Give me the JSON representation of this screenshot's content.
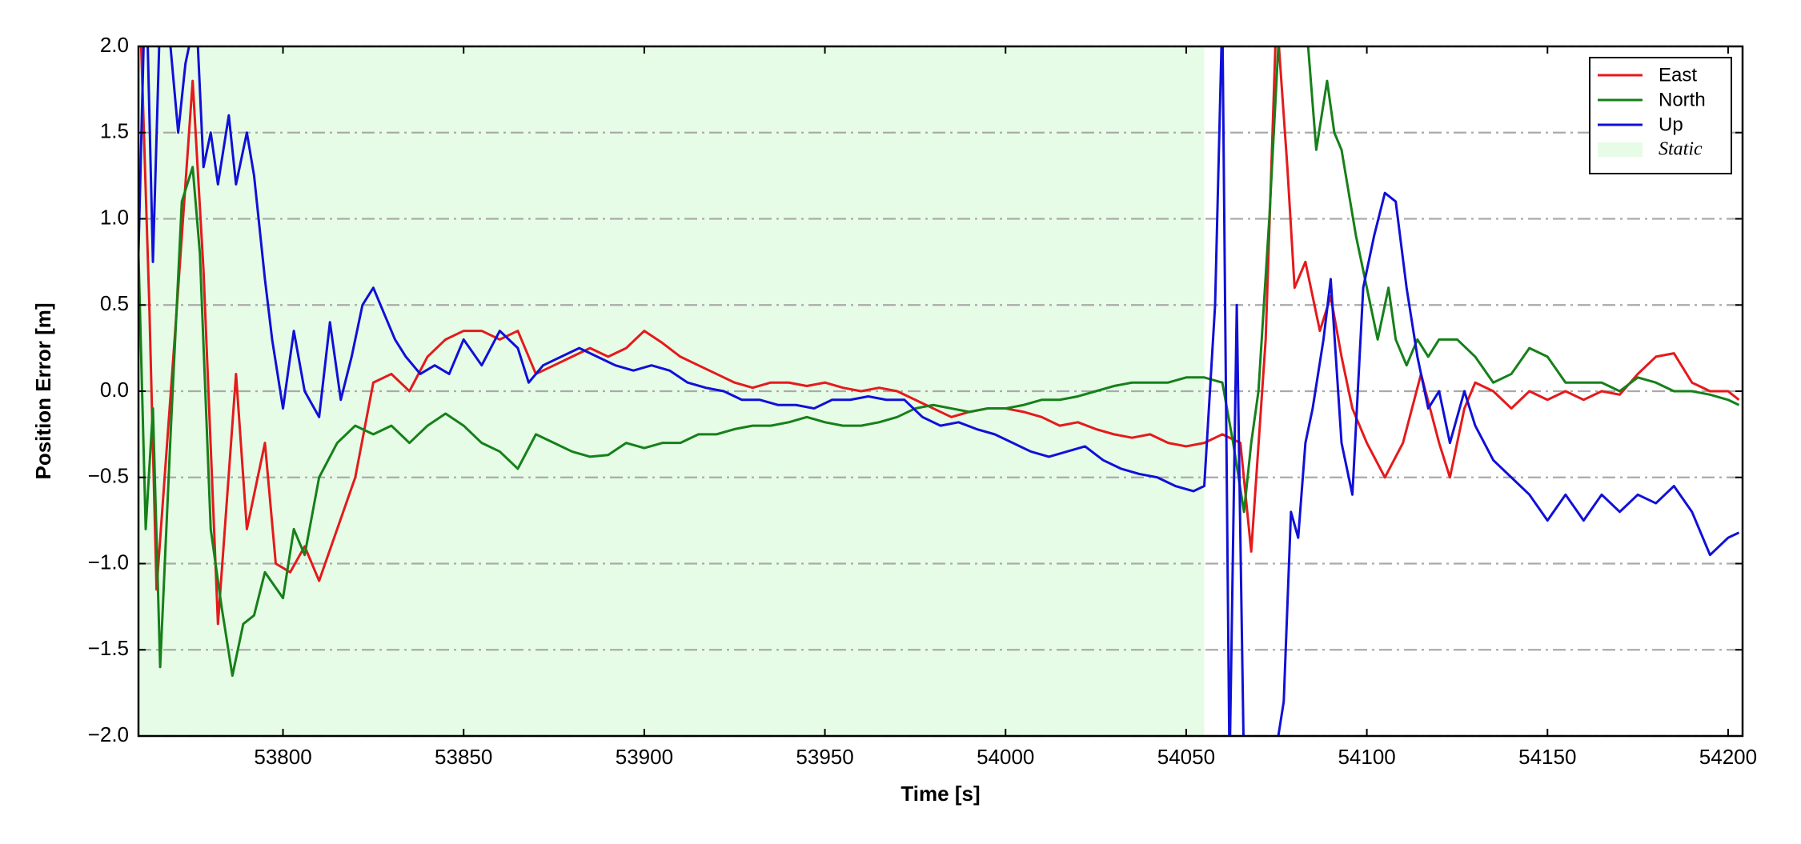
{
  "chart_data": {
    "type": "line",
    "xlabel": "Time [s]",
    "ylabel": "Position Error [m]",
    "xlim": [
      53760,
      54204
    ],
    "ylim": [
      -2,
      2
    ],
    "xticks": [
      53800,
      53850,
      53900,
      53950,
      54000,
      54050,
      54100,
      54150,
      54200
    ],
    "yticks": [
      {
        "value": -2,
        "label": "−2.0"
      },
      {
        "value": -1.5,
        "label": "−1.5"
      },
      {
        "value": -1,
        "label": "−1.0"
      },
      {
        "value": -0.5,
        "label": "−0.5"
      },
      {
        "value": 0,
        "label": "0.0"
      },
      {
        "value": 0.5,
        "label": "0.5"
      },
      {
        "value": 1,
        "label": "1.0"
      },
      {
        "value": 1.5,
        "label": "1.5"
      },
      {
        "value": 2,
        "label": "2.0"
      }
    ],
    "grid": "y",
    "legend": "upper right",
    "static": {
      "name": "Static",
      "start": 53760,
      "end": 54055,
      "color": "#e6fce6"
    },
    "series": [
      {
        "name": "East",
        "color": "#e41a1c",
        "x": [
          53760,
          53763,
          53765,
          53770,
          53775,
          53778,
          53782,
          53787,
          53790,
          53795,
          53798,
          53802,
          53806,
          53810,
          53815,
          53820,
          53825,
          53830,
          53835,
          53840,
          53845,
          53850,
          53855,
          53860,
          53865,
          53870,
          53875,
          53880,
          53885,
          53890,
          53895,
          53900,
          53905,
          53910,
          53915,
          53920,
          53925,
          53930,
          53935,
          53940,
          53945,
          53950,
          53955,
          53960,
          53965,
          53970,
          53975,
          53980,
          53985,
          53990,
          53995,
          54000,
          54005,
          54010,
          54015,
          54020,
          54025,
          54030,
          54035,
          54040,
          54045,
          54050,
          54055,
          54060,
          54065,
          54068,
          54072,
          54075,
          54078,
          54080,
          54083,
          54087,
          54090,
          54093,
          54096,
          54100,
          54105,
          54110,
          54115,
          54120,
          54123,
          54127,
          54130,
          54135,
          54140,
          54145,
          54150,
          54155,
          54160,
          54165,
          54170,
          54175,
          54180,
          54185,
          54190,
          54195,
          54200,
          54203
        ],
        "values": [
          2.5,
          0.5,
          -1.15,
          0.3,
          1.8,
          0.7,
          -1.35,
          0.1,
          -0.8,
          -0.3,
          -1.0,
          -1.05,
          -0.9,
          -1.1,
          -0.8,
          -0.5,
          0.05,
          0.1,
          0.0,
          0.2,
          0.3,
          0.35,
          0.35,
          0.3,
          0.35,
          0.1,
          0.15,
          0.2,
          0.25,
          0.2,
          0.25,
          0.35,
          0.28,
          0.2,
          0.15,
          0.1,
          0.05,
          0.02,
          0.05,
          0.05,
          0.03,
          0.05,
          0.02,
          0.0,
          0.02,
          0.0,
          -0.05,
          -0.1,
          -0.15,
          -0.12,
          -0.1,
          -0.1,
          -0.12,
          -0.15,
          -0.2,
          -0.18,
          -0.22,
          -0.25,
          -0.27,
          -0.25,
          -0.3,
          -0.32,
          -0.3,
          -0.25,
          -0.3,
          -0.93,
          0.3,
          2.2,
          1.3,
          0.6,
          0.75,
          0.35,
          0.55,
          0.2,
          -0.1,
          -0.3,
          -0.5,
          -0.3,
          0.1,
          -0.3,
          -0.5,
          -0.1,
          0.05,
          0.0,
          -0.1,
          0.0,
          -0.05,
          0.0,
          -0.05,
          0.0,
          -0.02,
          0.1,
          0.2,
          0.22,
          0.05,
          0.0,
          0.0,
          -0.05
        ]
      },
      {
        "name": "North",
        "color": "#16801a",
        "x": [
          53760,
          53762,
          53764,
          53766,
          53769,
          53772,
          53775,
          53777,
          53780,
          53783,
          53786,
          53789,
          53792,
          53795,
          53800,
          53803,
          53806,
          53810,
          53815,
          53820,
          53825,
          53830,
          53835,
          53840,
          53845,
          53850,
          53855,
          53860,
          53865,
          53870,
          53875,
          53880,
          53885,
          53890,
          53895,
          53900,
          53905,
          53910,
          53915,
          53920,
          53925,
          53930,
          53935,
          53940,
          53945,
          53950,
          53955,
          53960,
          53965,
          53970,
          53975,
          53980,
          53985,
          53990,
          53995,
          54000,
          54005,
          54010,
          54015,
          54020,
          54025,
          54030,
          54035,
          54040,
          54045,
          54050,
          54055,
          54060,
          54063,
          54066,
          54068,
          54070,
          54073,
          54076,
          54080,
          54083,
          54086,
          54089,
          54091,
          54093,
          54097,
          54100,
          54103,
          54106,
          54108,
          54111,
          54114,
          54117,
          54120,
          54125,
          54130,
          54135,
          54140,
          54145,
          54150,
          54155,
          54160,
          54165,
          54170,
          54175,
          54180,
          54185,
          54190,
          54195,
          54200,
          54203
        ],
        "values": [
          0.8,
          -0.8,
          -0.1,
          -1.6,
          -0.2,
          1.1,
          1.3,
          0.8,
          -0.8,
          -1.25,
          -1.65,
          -1.35,
          -1.3,
          -1.05,
          -1.2,
          -0.8,
          -0.95,
          -0.5,
          -0.3,
          -0.2,
          -0.25,
          -0.2,
          -0.3,
          -0.2,
          -0.13,
          -0.2,
          -0.3,
          -0.35,
          -0.45,
          -0.25,
          -0.3,
          -0.35,
          -0.38,
          -0.37,
          -0.3,
          -0.33,
          -0.3,
          -0.3,
          -0.25,
          -0.25,
          -0.22,
          -0.2,
          -0.2,
          -0.18,
          -0.15,
          -0.18,
          -0.2,
          -0.2,
          -0.18,
          -0.15,
          -0.1,
          -0.08,
          -0.1,
          -0.12,
          -0.1,
          -0.1,
          -0.08,
          -0.05,
          -0.05,
          -0.03,
          0.0,
          0.03,
          0.05,
          0.05,
          0.05,
          0.08,
          0.08,
          0.05,
          -0.3,
          -0.7,
          -0.3,
          0.0,
          1.0,
          2.2,
          2.2,
          2.2,
          1.4,
          1.8,
          1.5,
          1.4,
          0.9,
          0.6,
          0.3,
          0.6,
          0.3,
          0.15,
          0.3,
          0.2,
          0.3,
          0.3,
          0.2,
          0.05,
          0.1,
          0.25,
          0.2,
          0.05,
          0.05,
          0.05,
          0.0,
          0.08,
          0.05,
          0.0,
          0.0,
          -0.02,
          -0.05,
          -0.08
        ]
      },
      {
        "name": "Up",
        "color": "#1010d8",
        "x": [
          53760,
          53762,
          53764,
          53766,
          53768,
          53771,
          53773,
          53776,
          53778,
          53780,
          53782,
          53785,
          53787,
          53790,
          53792,
          53795,
          53797,
          53800,
          53803,
          53806,
          53810,
          53813,
          53816,
          53819,
          53822,
          53825,
          53828,
          53831,
          53834,
          53838,
          53842,
          53846,
          53850,
          53855,
          53860,
          53865,
          53868,
          53872,
          53877,
          53882,
          53887,
          53892,
          53897,
          53902,
          53907,
          53912,
          53917,
          53922,
          53927,
          53932,
          53937,
          53942,
          53947,
          53952,
          53957,
          53962,
          53967,
          53972,
          53977,
          53982,
          53987,
          53992,
          53997,
          54002,
          54007,
          54012,
          54017,
          54022,
          54027,
          54032,
          54037,
          54042,
          54047,
          54052,
          54055,
          54058,
          54060,
          54062,
          54064,
          54066,
          54068,
          54070,
          54074,
          54077,
          54079,
          54081,
          54083,
          54085,
          54088,
          54090,
          54093,
          54096,
          54099,
          54102,
          54105,
          54108,
          54111,
          54114,
          54117,
          54120,
          54123,
          54127,
          54130,
          54135,
          54140,
          54145,
          54150,
          54155,
          54160,
          54165,
          54170,
          54175,
          54180,
          54185,
          54190,
          54195,
          54200,
          54203
        ],
        "values": [
          0.8,
          2.5,
          0.75,
          2.2,
          2.2,
          1.5,
          1.9,
          2.2,
          1.3,
          1.5,
          1.2,
          1.6,
          1.2,
          1.5,
          1.25,
          0.65,
          0.3,
          -0.1,
          0.35,
          0.0,
          -0.15,
          0.4,
          -0.05,
          0.2,
          0.5,
          0.6,
          0.45,
          0.3,
          0.2,
          0.1,
          0.15,
          0.1,
          0.3,
          0.15,
          0.35,
          0.25,
          0.05,
          0.15,
          0.2,
          0.25,
          0.2,
          0.15,
          0.12,
          0.15,
          0.12,
          0.05,
          0.02,
          0.0,
          -0.05,
          -0.05,
          -0.08,
          -0.08,
          -0.1,
          -0.05,
          -0.05,
          -0.03,
          -0.05,
          -0.05,
          -0.15,
          -0.2,
          -0.18,
          -0.22,
          -0.25,
          -0.3,
          -0.35,
          -0.38,
          -0.35,
          -0.32,
          -0.4,
          -0.45,
          -0.48,
          -0.5,
          -0.55,
          -0.58,
          -0.55,
          0.5,
          2.2,
          -2.2,
          0.5,
          -2.2,
          -2.5,
          -2.3,
          -2.2,
          -1.8,
          -0.7,
          -0.85,
          -0.3,
          -0.1,
          0.3,
          0.65,
          -0.3,
          -0.6,
          0.6,
          0.9,
          1.15,
          1.1,
          0.6,
          0.2,
          -0.1,
          0.0,
          -0.3,
          0.0,
          -0.2,
          -0.4,
          -0.5,
          -0.6,
          -0.75,
          -0.6,
          -0.75,
          -0.6,
          -0.7,
          -0.6,
          -0.65,
          -0.55,
          -0.7,
          -0.95,
          -0.85,
          -0.82
        ]
      }
    ]
  }
}
